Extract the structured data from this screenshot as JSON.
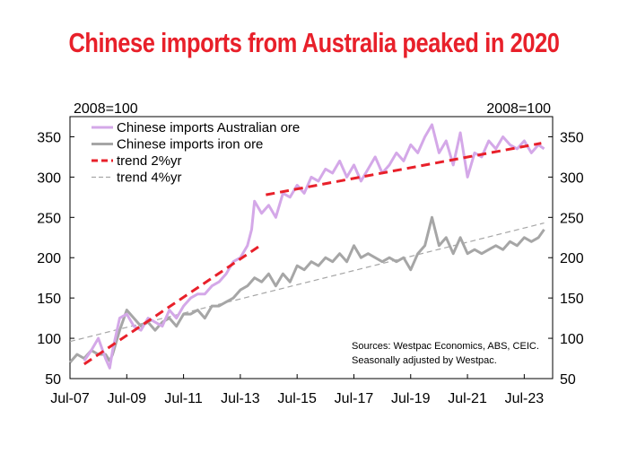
{
  "chart_data": {
    "type": "line",
    "title": "Chinese imports from Australia peaked in 2020",
    "y_unit_left": "2008=100",
    "y_unit_right": "2008=100",
    "ylim": [
      50,
      375
    ],
    "y_ticks": [
      50,
      100,
      150,
      200,
      250,
      300,
      350
    ],
    "x_tick_labels": [
      "Jul-07",
      "Jul-09",
      "Jul-11",
      "Jul-13",
      "Jul-15",
      "Jul-17",
      "Jul-19",
      "Jul-21",
      "Jul-23"
    ],
    "x_tick_years": [
      2007.5,
      2009.5,
      2011.5,
      2013.5,
      2015.5,
      2017.5,
      2019.5,
      2021.5,
      2023.5
    ],
    "xlim": [
      2007.5,
      2024.5
    ],
    "legend_position": "top-left",
    "notes": [
      "Sources: Westpac Economics, ABS, CEIC.",
      "Seasonally adjusted by Westpac."
    ],
    "series": [
      {
        "name": "Chinese imports Australian ore",
        "color": "#d4a8e8",
        "style": "solid",
        "points": [
          [
            2008.0,
            72
          ],
          [
            2008.25,
            85
          ],
          [
            2008.5,
            100
          ],
          [
            2008.75,
            75
          ],
          [
            2008.9,
            63
          ],
          [
            2009.0,
            85
          ],
          [
            2009.25,
            125
          ],
          [
            2009.5,
            130
          ],
          [
            2009.75,
            115
          ],
          [
            2010.0,
            110
          ],
          [
            2010.25,
            125
          ],
          [
            2010.5,
            120
          ],
          [
            2010.75,
            115
          ],
          [
            2011.0,
            135
          ],
          [
            2011.25,
            125
          ],
          [
            2011.5,
            140
          ],
          [
            2011.75,
            150
          ],
          [
            2012.0,
            155
          ],
          [
            2012.25,
            155
          ],
          [
            2012.5,
            165
          ],
          [
            2012.75,
            170
          ],
          [
            2013.0,
            180
          ],
          [
            2013.25,
            195
          ],
          [
            2013.5,
            200
          ],
          [
            2013.75,
            215
          ],
          [
            2013.9,
            235
          ],
          [
            2014.0,
            270
          ],
          [
            2014.25,
            255
          ],
          [
            2014.5,
            265
          ],
          [
            2014.75,
            250
          ],
          [
            2015.0,
            280
          ],
          [
            2015.25,
            275
          ],
          [
            2015.5,
            290
          ],
          [
            2015.75,
            280
          ],
          [
            2016.0,
            300
          ],
          [
            2016.25,
            295
          ],
          [
            2016.5,
            310
          ],
          [
            2016.75,
            305
          ],
          [
            2017.0,
            320
          ],
          [
            2017.25,
            300
          ],
          [
            2017.5,
            315
          ],
          [
            2017.75,
            295
          ],
          [
            2018.0,
            310
          ],
          [
            2018.25,
            325
          ],
          [
            2018.5,
            305
          ],
          [
            2018.75,
            315
          ],
          [
            2019.0,
            330
          ],
          [
            2019.25,
            320
          ],
          [
            2019.5,
            340
          ],
          [
            2019.75,
            330
          ],
          [
            2020.0,
            350
          ],
          [
            2020.25,
            365
          ],
          [
            2020.5,
            330
          ],
          [
            2020.75,
            345
          ],
          [
            2021.0,
            315
          ],
          [
            2021.25,
            355
          ],
          [
            2021.5,
            300
          ],
          [
            2021.75,
            330
          ],
          [
            2022.0,
            325
          ],
          [
            2022.25,
            345
          ],
          [
            2022.5,
            335
          ],
          [
            2022.75,
            350
          ],
          [
            2023.0,
            340
          ],
          [
            2023.25,
            335
          ],
          [
            2023.5,
            345
          ],
          [
            2023.75,
            330
          ],
          [
            2024.0,
            340
          ],
          [
            2024.2,
            335
          ]
        ]
      },
      {
        "name": "Chinese imports iron ore",
        "color": "#a6a6a6",
        "style": "solid",
        "points": [
          [
            2007.5,
            70
          ],
          [
            2007.75,
            80
          ],
          [
            2008.0,
            75
          ],
          [
            2008.25,
            85
          ],
          [
            2008.5,
            80
          ],
          [
            2008.75,
            80
          ],
          [
            2008.9,
            72
          ],
          [
            2009.0,
            80
          ],
          [
            2009.25,
            110
          ],
          [
            2009.5,
            135
          ],
          [
            2009.75,
            125
          ],
          [
            2010.0,
            115
          ],
          [
            2010.25,
            120
          ],
          [
            2010.5,
            110
          ],
          [
            2010.75,
            120
          ],
          [
            2011.0,
            125
          ],
          [
            2011.25,
            115
          ],
          [
            2011.5,
            130
          ],
          [
            2011.75,
            130
          ],
          [
            2012.0,
            135
          ],
          [
            2012.25,
            125
          ],
          [
            2012.5,
            140
          ],
          [
            2012.75,
            140
          ],
          [
            2013.0,
            145
          ],
          [
            2013.25,
            150
          ],
          [
            2013.5,
            160
          ],
          [
            2013.75,
            165
          ],
          [
            2014.0,
            175
          ],
          [
            2014.25,
            170
          ],
          [
            2014.5,
            180
          ],
          [
            2014.75,
            165
          ],
          [
            2015.0,
            180
          ],
          [
            2015.25,
            170
          ],
          [
            2015.5,
            190
          ],
          [
            2015.75,
            185
          ],
          [
            2016.0,
            195
          ],
          [
            2016.25,
            190
          ],
          [
            2016.5,
            200
          ],
          [
            2016.75,
            195
          ],
          [
            2017.0,
            205
          ],
          [
            2017.25,
            195
          ],
          [
            2017.5,
            215
          ],
          [
            2017.75,
            200
          ],
          [
            2018.0,
            205
          ],
          [
            2018.25,
            200
          ],
          [
            2018.5,
            195
          ],
          [
            2018.75,
            200
          ],
          [
            2019.0,
            195
          ],
          [
            2019.25,
            200
          ],
          [
            2019.5,
            185
          ],
          [
            2019.75,
            205
          ],
          [
            2020.0,
            215
          ],
          [
            2020.25,
            250
          ],
          [
            2020.5,
            215
          ],
          [
            2020.75,
            225
          ],
          [
            2021.0,
            205
          ],
          [
            2021.25,
            225
          ],
          [
            2021.5,
            205
          ],
          [
            2021.75,
            210
          ],
          [
            2022.0,
            205
          ],
          [
            2022.25,
            210
          ],
          [
            2022.5,
            215
          ],
          [
            2022.75,
            210
          ],
          [
            2023.0,
            220
          ],
          [
            2023.25,
            215
          ],
          [
            2023.5,
            225
          ],
          [
            2023.75,
            220
          ],
          [
            2024.0,
            225
          ],
          [
            2024.2,
            235
          ]
        ]
      },
      {
        "name": "trend 2%yr",
        "color": "#e8202a",
        "style": "dashed-thick",
        "segments": [
          [
            [
              2008.0,
              68
            ],
            [
              2014.2,
              215
            ]
          ],
          [
            [
              2014.4,
              278
            ],
            [
              2024.1,
              342
            ]
          ]
        ]
      },
      {
        "name": "trend 4%yr",
        "color": "#a6a6a6",
        "style": "dashed-thin",
        "segments": [
          [
            [
              2007.5,
              96
            ],
            [
              2024.2,
              243
            ]
          ]
        ]
      }
    ]
  }
}
